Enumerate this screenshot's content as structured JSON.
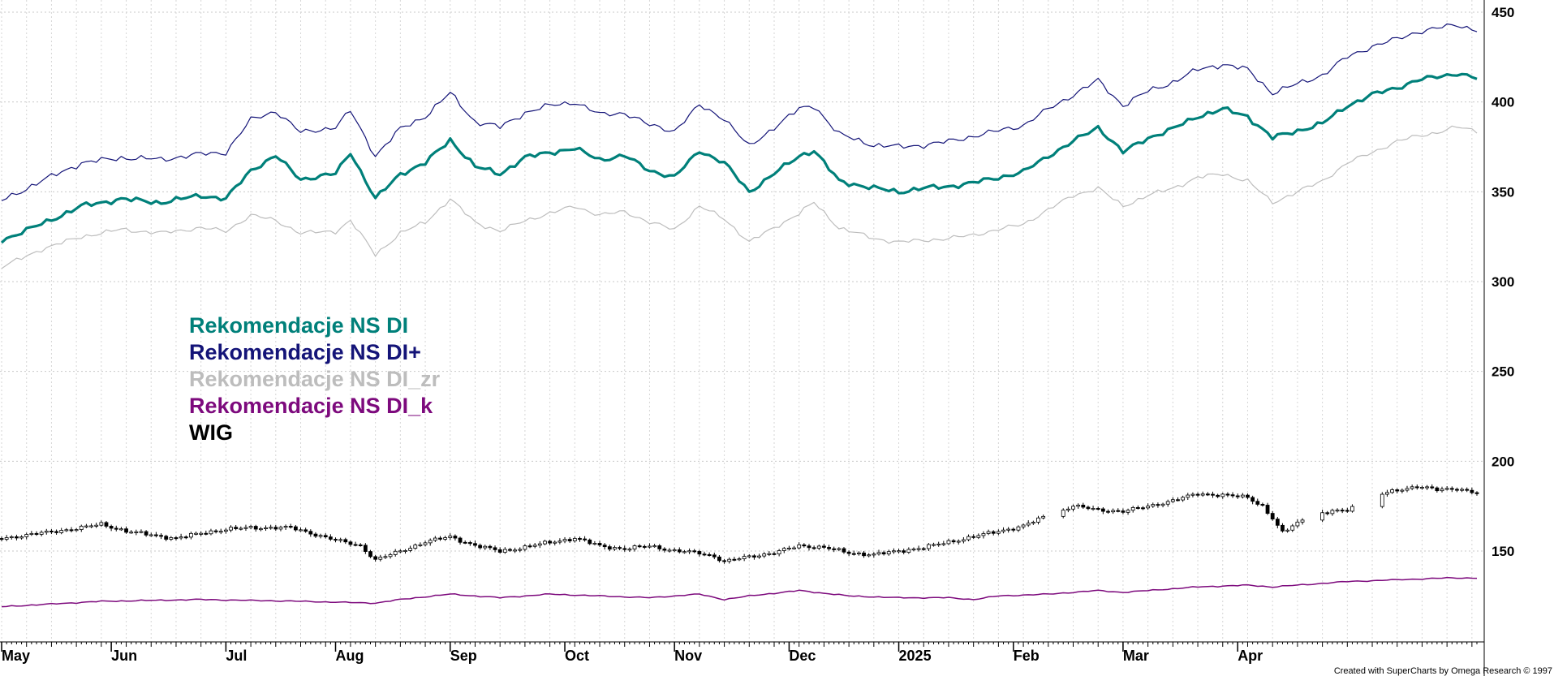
{
  "chart_data": {
    "type": "line",
    "x_axis": {
      "labels": [
        "May",
        "Jun",
        "Jul",
        "Aug",
        "Sep",
        "Oct",
        "Nov",
        "Dec",
        "2025",
        "Feb",
        "Mar",
        "Apr"
      ],
      "label_index": [
        0,
        22,
        45,
        67,
        90,
        113,
        135,
        158,
        180,
        203,
        225,
        248
      ],
      "n_points": 296
    },
    "y_axis": {
      "ticks": [
        150,
        200,
        250,
        300,
        350,
        400,
        450
      ],
      "ylim": [
        100,
        457
      ],
      "grid": true,
      "side": "right"
    },
    "legend_position": "left-middle",
    "series": [
      {
        "key": "di",
        "name": "Rekomendacje NS DI",
        "color": "#00807A",
        "style": "line",
        "anchors": [
          [
            0,
            323
          ],
          [
            8,
            332
          ],
          [
            16,
            342
          ],
          [
            24,
            346
          ],
          [
            32,
            344
          ],
          [
            40,
            348
          ],
          [
            45,
            346
          ],
          [
            50,
            362
          ],
          [
            55,
            370
          ],
          [
            60,
            357
          ],
          [
            67,
            360
          ],
          [
            70,
            372
          ],
          [
            75,
            346
          ],
          [
            80,
            360
          ],
          [
            85,
            366
          ],
          [
            90,
            379
          ],
          [
            95,
            364
          ],
          [
            100,
            360
          ],
          [
            105,
            369
          ],
          [
            110,
            372
          ],
          [
            115,
            374
          ],
          [
            120,
            368
          ],
          [
            125,
            370
          ],
          [
            130,
            362
          ],
          [
            135,
            358
          ],
          [
            140,
            373
          ],
          [
            145,
            366
          ],
          [
            150,
            350
          ],
          [
            155,
            360
          ],
          [
            160,
            370
          ],
          [
            163,
            373
          ],
          [
            168,
            356
          ],
          [
            175,
            352
          ],
          [
            180,
            350
          ],
          [
            185,
            352
          ],
          [
            190,
            353
          ],
          [
            195,
            355
          ],
          [
            200,
            358
          ],
          [
            205,
            361
          ],
          [
            210,
            370
          ],
          [
            215,
            378
          ],
          [
            220,
            386
          ],
          [
            225,
            372
          ],
          [
            230,
            380
          ],
          [
            235,
            385
          ],
          [
            240,
            392
          ],
          [
            245,
            396
          ],
          [
            250,
            392
          ],
          [
            255,
            380
          ],
          [
            260,
            384
          ],
          [
            265,
            388
          ],
          [
            270,
            398
          ],
          [
            275,
            404
          ],
          [
            280,
            408
          ],
          [
            284,
            412
          ],
          [
            288,
            414
          ],
          [
            292,
            416
          ],
          [
            296,
            413
          ]
        ]
      },
      {
        "key": "dip",
        "name": "Rekomendacje NS DI+",
        "color": "#141478",
        "style": "line",
        "anchors": [
          [
            0,
            345
          ],
          [
            8,
            356
          ],
          [
            16,
            366
          ],
          [
            24,
            369
          ],
          [
            32,
            368
          ],
          [
            40,
            371
          ],
          [
            45,
            372
          ],
          [
            50,
            390
          ],
          [
            55,
            395
          ],
          [
            60,
            383
          ],
          [
            67,
            386
          ],
          [
            70,
            395
          ],
          [
            75,
            370
          ],
          [
            80,
            385
          ],
          [
            85,
            392
          ],
          [
            90,
            405
          ],
          [
            95,
            389
          ],
          [
            100,
            386
          ],
          [
            105,
            394
          ],
          [
            110,
            398
          ],
          [
            115,
            400
          ],
          [
            120,
            393
          ],
          [
            125,
            394
          ],
          [
            130,
            387
          ],
          [
            135,
            384
          ],
          [
            140,
            398
          ],
          [
            145,
            391
          ],
          [
            150,
            375
          ],
          [
            155,
            386
          ],
          [
            160,
            396
          ],
          [
            163,
            398
          ],
          [
            168,
            382
          ],
          [
            175,
            376
          ],
          [
            180,
            375
          ],
          [
            185,
            376
          ],
          [
            190,
            378
          ],
          [
            195,
            381
          ],
          [
            200,
            384
          ],
          [
            205,
            387
          ],
          [
            210,
            396
          ],
          [
            215,
            404
          ],
          [
            220,
            412
          ],
          [
            225,
            398
          ],
          [
            230,
            406
          ],
          [
            235,
            411
          ],
          [
            240,
            418
          ],
          [
            245,
            421
          ],
          [
            250,
            418
          ],
          [
            255,
            405
          ],
          [
            260,
            410
          ],
          [
            265,
            415
          ],
          [
            270,
            425
          ],
          [
            275,
            431
          ],
          [
            280,
            435
          ],
          [
            284,
            439
          ],
          [
            288,
            441
          ],
          [
            292,
            443
          ],
          [
            296,
            440
          ]
        ]
      },
      {
        "key": "dizr",
        "name": "Rekomendacje NS DI_zr",
        "color": "#BDBDBD",
        "style": "line",
        "anchors": [
          [
            0,
            308
          ],
          [
            8,
            318
          ],
          [
            16,
            325
          ],
          [
            24,
            329
          ],
          [
            32,
            327
          ],
          [
            40,
            330
          ],
          [
            45,
            328
          ],
          [
            50,
            337
          ],
          [
            55,
            334
          ],
          [
            60,
            327
          ],
          [
            67,
            328
          ],
          [
            70,
            334
          ],
          [
            75,
            315
          ],
          [
            80,
            327
          ],
          [
            85,
            333
          ],
          [
            90,
            346
          ],
          [
            95,
            333
          ],
          [
            100,
            328
          ],
          [
            105,
            334
          ],
          [
            110,
            338
          ],
          [
            115,
            342
          ],
          [
            120,
            337
          ],
          [
            125,
            339
          ],
          [
            130,
            333
          ],
          [
            135,
            329
          ],
          [
            140,
            342
          ],
          [
            145,
            335
          ],
          [
            150,
            322
          ],
          [
            155,
            330
          ],
          [
            160,
            338
          ],
          [
            163,
            344
          ],
          [
            168,
            330
          ],
          [
            175,
            324
          ],
          [
            180,
            322
          ],
          [
            185,
            323
          ],
          [
            190,
            324
          ],
          [
            195,
            326
          ],
          [
            200,
            329
          ],
          [
            205,
            332
          ],
          [
            210,
            340
          ],
          [
            215,
            348
          ],
          [
            220,
            352
          ],
          [
            225,
            342
          ],
          [
            230,
            348
          ],
          [
            235,
            352
          ],
          [
            240,
            358
          ],
          [
            245,
            360
          ],
          [
            250,
            356
          ],
          [
            255,
            344
          ],
          [
            260,
            350
          ],
          [
            265,
            356
          ],
          [
            270,
            366
          ],
          [
            275,
            372
          ],
          [
            280,
            378
          ],
          [
            284,
            381
          ],
          [
            288,
            383
          ],
          [
            292,
            386
          ],
          [
            296,
            384
          ]
        ]
      },
      {
        "key": "dik",
        "name": "Rekomendacje NS DI_k",
        "color": "#7D0A7D",
        "style": "line",
        "anchors": [
          [
            0,
            119
          ],
          [
            20,
            122
          ],
          [
            40,
            123
          ],
          [
            60,
            122
          ],
          [
            75,
            121
          ],
          [
            80,
            123
          ],
          [
            90,
            126
          ],
          [
            100,
            124
          ],
          [
            110,
            126
          ],
          [
            120,
            125
          ],
          [
            130,
            124
          ],
          [
            140,
            126
          ],
          [
            145,
            123
          ],
          [
            150,
            125
          ],
          [
            160,
            128
          ],
          [
            170,
            125
          ],
          [
            180,
            124
          ],
          [
            190,
            124
          ],
          [
            195,
            123
          ],
          [
            200,
            125
          ],
          [
            210,
            126
          ],
          [
            220,
            128
          ],
          [
            225,
            127
          ],
          [
            230,
            128
          ],
          [
            240,
            130
          ],
          [
            250,
            131
          ],
          [
            255,
            130
          ],
          [
            260,
            131
          ],
          [
            270,
            133
          ],
          [
            280,
            134
          ],
          [
            290,
            135
          ],
          [
            296,
            135
          ]
        ]
      },
      {
        "key": "wig",
        "name": "WIG",
        "color": "#000000",
        "style": "candlestick",
        "anchors": [
          [
            0,
            157
          ],
          [
            8,
            160
          ],
          [
            16,
            163
          ],
          [
            20,
            165
          ],
          [
            25,
            161
          ],
          [
            30,
            159
          ],
          [
            35,
            157
          ],
          [
            40,
            160
          ],
          [
            45,
            162
          ],
          [
            50,
            163
          ],
          [
            58,
            163
          ],
          [
            62,
            160
          ],
          [
            67,
            156
          ],
          [
            72,
            153
          ],
          [
            75,
            145
          ],
          [
            80,
            150
          ],
          [
            85,
            155
          ],
          [
            90,
            158
          ],
          [
            95,
            153
          ],
          [
            100,
            150
          ],
          [
            105,
            152
          ],
          [
            110,
            155
          ],
          [
            115,
            157
          ],
          [
            120,
            153
          ],
          [
            125,
            151
          ],
          [
            130,
            153
          ],
          [
            135,
            150
          ],
          [
            140,
            149
          ],
          [
            143,
            147
          ],
          [
            145,
            144
          ],
          [
            150,
            147
          ],
          [
            155,
            149
          ],
          [
            160,
            153
          ],
          [
            165,
            152
          ],
          [
            170,
            149
          ],
          [
            175,
            148
          ],
          [
            180,
            150
          ],
          [
            185,
            152
          ],
          [
            190,
            155
          ],
          [
            195,
            158
          ],
          [
            200,
            161
          ],
          [
            205,
            164
          ],
          [
            210,
            170
          ],
          [
            215,
            175
          ],
          [
            220,
            173
          ],
          [
            225,
            172
          ],
          [
            230,
            175
          ],
          [
            235,
            178
          ],
          [
            240,
            182
          ],
          [
            245,
            181
          ],
          [
            250,
            180
          ],
          [
            253,
            175
          ],
          [
            255,
            168
          ],
          [
            257,
            160
          ],
          [
            260,
            166
          ],
          [
            265,
            171
          ],
          [
            270,
            173
          ],
          [
            275,
            180
          ],
          [
            280,
            184
          ],
          [
            284,
            186
          ],
          [
            288,
            184
          ],
          [
            292,
            185
          ],
          [
            296,
            182
          ]
        ],
        "gaps": [
          [
            210,
            212
          ],
          [
            262,
            264
          ],
          [
            272,
            276
          ]
        ]
      }
    ]
  },
  "credit": "Created with SuperCharts by Omega Research © 1997"
}
